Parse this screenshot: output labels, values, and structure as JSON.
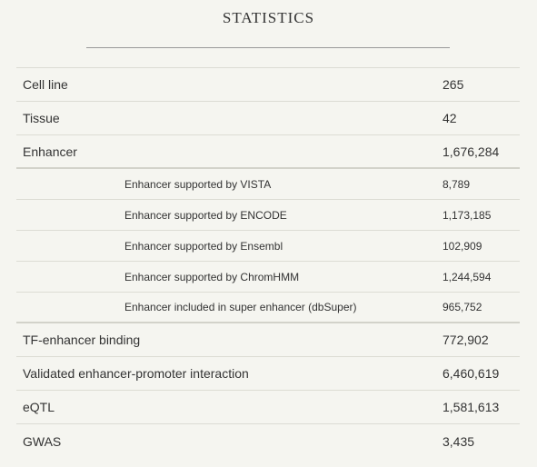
{
  "title": "STATISTICS",
  "rows": [
    {
      "label": "Cell line",
      "value": "265"
    },
    {
      "label": "Tissue",
      "value": "42"
    },
    {
      "label": "Enhancer",
      "value": "1,676,284"
    },
    {
      "label": "Enhancer supported by VISTA",
      "value": "8,789"
    },
    {
      "label": "Enhancer supported by ENCODE",
      "value": "1,173,185"
    },
    {
      "label": "Enhancer supported by Ensembl",
      "value": "102,909"
    },
    {
      "label": "Enhancer supported by ChromHMM",
      "value": "1,244,594"
    },
    {
      "label": "Enhancer included in super enhancer (dbSuper)",
      "value": "965,752"
    },
    {
      "label": "TF-enhancer binding",
      "value": "772,902"
    },
    {
      "label": "Validated enhancer-promoter interaction",
      "value": "6,460,619"
    },
    {
      "label": "eQTL",
      "value": "1,581,613"
    },
    {
      "label": "GWAS",
      "value": "3,435"
    }
  ]
}
